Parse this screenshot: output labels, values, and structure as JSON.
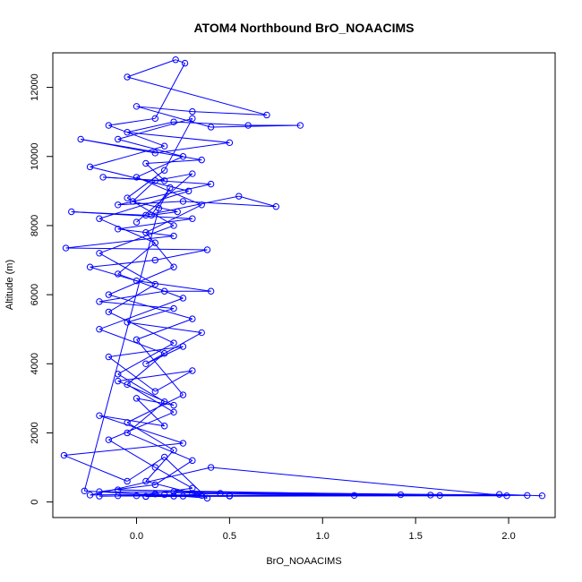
{
  "chart_data": {
    "type": "scatter",
    "title": "ATOM4 Northbound BrO_NOAACIMS",
    "xlabel": "BrO_NOAACIMS",
    "ylabel": "Altitude (m)",
    "xlim": [
      -0.45,
      2.25
    ],
    "ylim": [
      -450,
      13000
    ],
    "x_ticks": [
      0.0,
      0.5,
      1.0,
      1.5,
      2.0
    ],
    "x_tick_labels": [
      "0.0",
      "0.5",
      "1.0",
      "1.5",
      "2.0"
    ],
    "y_ticks": [
      0,
      2000,
      4000,
      6000,
      8000,
      10000,
      12000
    ],
    "y_tick_labels": [
      "0",
      "2000",
      "4000",
      "6000",
      "8000",
      "10000",
      "12000"
    ],
    "grid": false,
    "legend": "none",
    "series_color": "#0000ff",
    "marker": "open-circle",
    "connected": true,
    "points": [
      {
        "x": 2.18,
        "y": 180
      },
      {
        "x": 1.95,
        "y": 220
      },
      {
        "x": 0.05,
        "y": 160
      },
      {
        "x": 2.1,
        "y": 190
      },
      {
        "x": 0.2,
        "y": 300
      },
      {
        "x": 1.58,
        "y": 200
      },
      {
        "x": -0.2,
        "y": 170
      },
      {
        "x": 1.42,
        "y": 210
      },
      {
        "x": 0.3,
        "y": 250
      },
      {
        "x": 1.17,
        "y": 190
      },
      {
        "x": -0.1,
        "y": 350
      },
      {
        "x": 1.63,
        "y": 190
      },
      {
        "x": 0.5,
        "y": 180
      },
      {
        "x": 1.99,
        "y": 180
      },
      {
        "x": 0.4,
        "y": 1000
      },
      {
        "x": -0.25,
        "y": 200
      },
      {
        "x": 0.1,
        "y": 230
      },
      {
        "x": 0.38,
        "y": 110
      },
      {
        "x": 0.15,
        "y": 1300
      },
      {
        "x": -0.05,
        "y": 600
      },
      {
        "x": -0.39,
        "y": 1350
      },
      {
        "x": 0.25,
        "y": 1700
      },
      {
        "x": -0.2,
        "y": 2500
      },
      {
        "x": 0.15,
        "y": 2200
      },
      {
        "x": 0.0,
        "y": 3000
      },
      {
        "x": 0.2,
        "y": 2800
      },
      {
        "x": -0.1,
        "y": 3500
      },
      {
        "x": 0.3,
        "y": 3800
      },
      {
        "x": 0.1,
        "y": 3200
      },
      {
        "x": -0.15,
        "y": 4200
      },
      {
        "x": 0.25,
        "y": 4500
      },
      {
        "x": 0.05,
        "y": 4000
      },
      {
        "x": 0.35,
        "y": 4900
      },
      {
        "x": -0.05,
        "y": 5200
      },
      {
        "x": 0.2,
        "y": 5600
      },
      {
        "x": -0.2,
        "y": 5800
      },
      {
        "x": 0.15,
        "y": 6100
      },
      {
        "x": 0.4,
        "y": 6100
      },
      {
        "x": 0.0,
        "y": 6400
      },
      {
        "x": -0.25,
        "y": 6800
      },
      {
        "x": 0.1,
        "y": 7000
      },
      {
        "x": 0.38,
        "y": 7300
      },
      {
        "x": -0.38,
        "y": 7350
      },
      {
        "x": 0.2,
        "y": 7700
      },
      {
        "x": -0.1,
        "y": 7900
      },
      {
        "x": 0.3,
        "y": 8200
      },
      {
        "x": -0.35,
        "y": 8400
      },
      {
        "x": 0.05,
        "y": 8300
      },
      {
        "x": 0.55,
        "y": 8850
      },
      {
        "x": 0.75,
        "y": 8550
      },
      {
        "x": 0.25,
        "y": 8700
      },
      {
        "x": -0.1,
        "y": 8600
      },
      {
        "x": 0.4,
        "y": 9200
      },
      {
        "x": -0.18,
        "y": 9400
      },
      {
        "x": 0.15,
        "y": 9300
      },
      {
        "x": 0.05,
        "y": 9800
      },
      {
        "x": 0.35,
        "y": 9900
      },
      {
        "x": -0.3,
        "y": 10500
      },
      {
        "x": 0.1,
        "y": 10100
      },
      {
        "x": 0.5,
        "y": 10400
      },
      {
        "x": -0.05,
        "y": 10700
      },
      {
        "x": 0.2,
        "y": 11000
      },
      {
        "x": 0.6,
        "y": 10900
      },
      {
        "x": 0.88,
        "y": 10900
      },
      {
        "x": 0.4,
        "y": 10850
      },
      {
        "x": 0.0,
        "y": 11450
      },
      {
        "x": 0.3,
        "y": 11300
      },
      {
        "x": 0.7,
        "y": 11200
      },
      {
        "x": -0.05,
        "y": 12300
      },
      {
        "x": 0.21,
        "y": 12800
      },
      {
        "x": 0.26,
        "y": 12700
      },
      {
        "x": 0.1,
        "y": 11100
      },
      {
        "x": -0.15,
        "y": 10900
      },
      {
        "x": 0.15,
        "y": 10300
      },
      {
        "x": -0.25,
        "y": 9700
      },
      {
        "x": 0.28,
        "y": 9000
      },
      {
        "x": -0.2,
        "y": 8200
      },
      {
        "x": 0.1,
        "y": 7500
      },
      {
        "x": -0.1,
        "y": 6600
      },
      {
        "x": 0.25,
        "y": 5900
      },
      {
        "x": -0.2,
        "y": 5000
      },
      {
        "x": 0.15,
        "y": 4300
      },
      {
        "x": -0.05,
        "y": 3400
      },
      {
        "x": 0.2,
        "y": 2600
      },
      {
        "x": -0.15,
        "y": 1800
      },
      {
        "x": 0.1,
        "y": 1000
      },
      {
        "x": 0.3,
        "y": 400
      },
      {
        "x": 0.0,
        "y": 180
      },
      {
        "x": 0.25,
        "y": 170
      },
      {
        "x": 0.5,
        "y": 170
      },
      {
        "x": -0.1,
        "y": 180
      },
      {
        "x": 0.15,
        "y": 210
      },
      {
        "x": 0.35,
        "y": 190
      },
      {
        "x": 0.05,
        "y": 600
      },
      {
        "x": 0.2,
        "y": 1500
      },
      {
        "x": -0.05,
        "y": 2300
      },
      {
        "x": 0.25,
        "y": 3100
      },
      {
        "x": 0.0,
        "y": 4700
      },
      {
        "x": 0.3,
        "y": 5300
      },
      {
        "x": -0.15,
        "y": 6000
      },
      {
        "x": 0.2,
        "y": 6800
      },
      {
        "x": 0.05,
        "y": 7800
      },
      {
        "x": 0.35,
        "y": 8600
      },
      {
        "x": 0.0,
        "y": 9400
      },
      {
        "x": 0.25,
        "y": 10000
      },
      {
        "x": -0.1,
        "y": 10500
      },
      {
        "x": 0.3,
        "y": 11100
      },
      {
        "x": 0.15,
        "y": 9600
      },
      {
        "x": -0.05,
        "y": 8800
      },
      {
        "x": 0.2,
        "y": 8000
      },
      {
        "x": -0.2,
        "y": 7200
      },
      {
        "x": 0.1,
        "y": 6300
      },
      {
        "x": -0.15,
        "y": 5500
      },
      {
        "x": 0.2,
        "y": 4600
      },
      {
        "x": -0.1,
        "y": 3700
      },
      {
        "x": 0.15,
        "y": 2900
      },
      {
        "x": -0.05,
        "y": 2000
      },
      {
        "x": 0.3,
        "y": 1200
      },
      {
        "x": 0.1,
        "y": 500
      },
      {
        "x": -0.2,
        "y": 300
      },
      {
        "x": 0.45,
        "y": 250
      },
      {
        "x": 0.05,
        "y": 160
      },
      {
        "x": 0.2,
        "y": 170
      },
      {
        "x": -0.28,
        "y": 320
      },
      {
        "x": 0.12,
        "y": 8500
      },
      {
        "x": 0.18,
        "y": 9100
      },
      {
        "x": 0.08,
        "y": 8300
      },
      {
        "x": 0.22,
        "y": 8400
      },
      {
        "x": -0.02,
        "y": 8700
      },
      {
        "x": 0.1,
        "y": 9300
      },
      {
        "x": 0.3,
        "y": 9500
      },
      {
        "x": 0.0,
        "y": 8100
      }
    ]
  }
}
